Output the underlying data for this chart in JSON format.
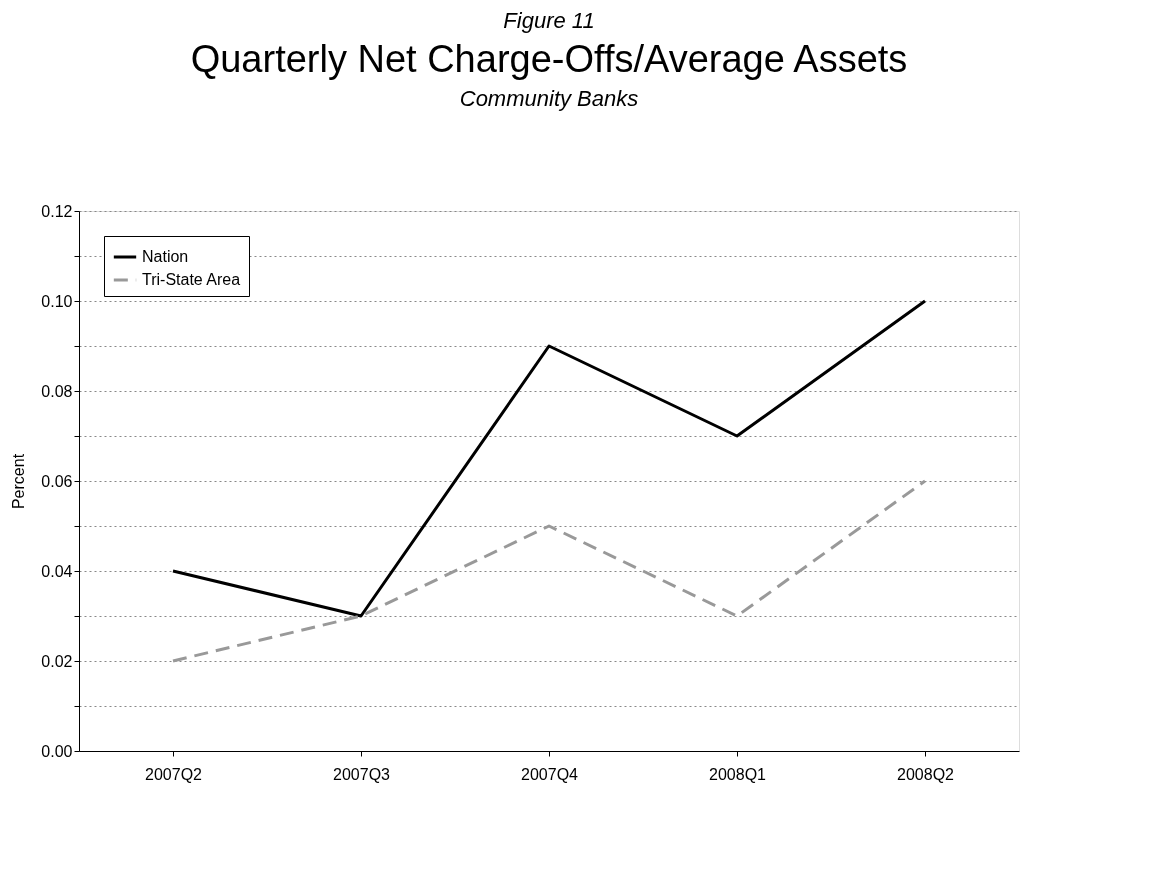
{
  "chart_data": {
    "type": "line",
    "title": "Quarterly Net Charge-Offs/Average Assets",
    "subtitle": "Community Banks",
    "annotations": [
      "Figure 11"
    ],
    "ylabel": "Percent",
    "categories": [
      "2007Q2",
      "2007Q3",
      "2007Q4",
      "2008Q1",
      "2008Q2"
    ],
    "series": [
      {
        "name": "Nation",
        "color": "#000000",
        "line_style": "solid",
        "values": [
          0.04,
          0.03,
          0.09,
          0.07,
          0.1
        ]
      },
      {
        "name": "Tri-State Area",
        "color": "#999999",
        "line_style": "dashed",
        "values": [
          0.02,
          0.03,
          0.05,
          0.03,
          0.06
        ]
      }
    ],
    "ylim": [
      0,
      0.12
    ],
    "yticks": [
      {
        "value": 0,
        "label": "0.00"
      },
      {
        "value": 0.01,
        "label": null
      },
      {
        "value": 0.02,
        "label": "0.02"
      },
      {
        "value": 0.03,
        "label": null
      },
      {
        "value": 0.04,
        "label": "0.04"
      },
      {
        "value": 0.05,
        "label": null
      },
      {
        "value": 0.06,
        "label": "0.06"
      },
      {
        "value": 0.07,
        "label": null
      },
      {
        "value": 0.08,
        "label": "0.08"
      },
      {
        "value": 0.09,
        "label": null
      },
      {
        "value": 0.1,
        "label": "0.10"
      },
      {
        "value": 0.11,
        "label": null
      },
      {
        "value": 0.12,
        "label": "0.12"
      }
    ],
    "grid": "y",
    "legend": "top left",
    "marker": "none"
  }
}
